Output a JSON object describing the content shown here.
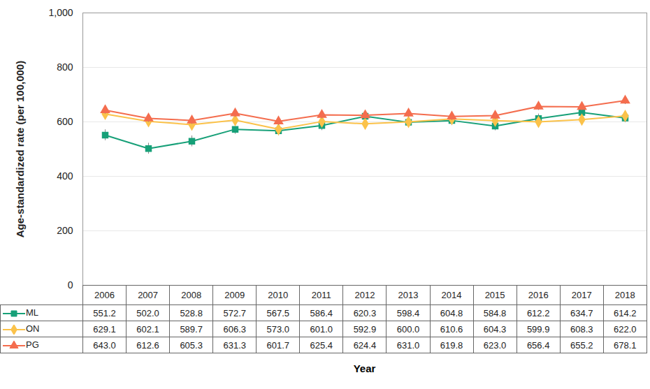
{
  "chart_data": {
    "type": "line",
    "x_label": "Year",
    "y_label": "Age-standardized rate (per 100,000)",
    "categories": [
      "2006",
      "2007",
      "2008",
      "2009",
      "2010",
      "2011",
      "2012",
      "2013",
      "2014",
      "2015",
      "2016",
      "2017",
      "2018"
    ],
    "series": [
      {
        "name": "ML",
        "color": "#17a078",
        "marker": "square",
        "values": [
          551.2,
          502.0,
          528.8,
          572.7,
          567.5,
          586.4,
          620.3,
          598.4,
          604.8,
          584.8,
          612.2,
          634.7,
          614.2
        ],
        "value_labels": [
          "551.2",
          "502.0",
          "528.8",
          "572.7",
          "567.5",
          "586.4",
          "620.3",
          "598.4",
          "604.8",
          "584.8",
          "612.2",
          "634.7",
          "614.2"
        ],
        "errors": [
          20,
          20,
          20,
          18,
          18,
          18,
          18,
          18,
          18,
          17,
          17,
          17,
          17
        ]
      },
      {
        "name": "ON",
        "color": "#fbc24a",
        "marker": "diamond",
        "values": [
          629.1,
          602.1,
          589.7,
          606.3,
          573.0,
          601.0,
          592.9,
          600.0,
          610.6,
          604.3,
          599.9,
          608.3,
          622.0
        ],
        "value_labels": [
          "629.1",
          "602.1",
          "589.7",
          "606.3",
          "573.0",
          "601.0",
          "592.9",
          "600.0",
          "610.6",
          "604.3",
          "599.9",
          "608.3",
          "622.0"
        ],
        "errors": [
          5,
          5,
          5,
          5,
          5,
          5,
          5,
          5,
          5,
          5,
          5,
          5,
          5
        ]
      },
      {
        "name": "PG",
        "color": "#f46d4e",
        "marker": "triangle",
        "values": [
          643.0,
          612.6,
          605.3,
          631.3,
          601.7,
          625.4,
          624.4,
          631.0,
          619.8,
          623.0,
          656.4,
          655.2,
          678.1
        ],
        "value_labels": [
          "643.0",
          "612.6",
          "605.3",
          "631.3",
          "601.7",
          "625.4",
          "624.4",
          "631.0",
          "619.8",
          "623.0",
          "656.4",
          "655.2",
          "678.1"
        ],
        "errors": [
          14,
          14,
          14,
          14,
          14,
          14,
          14,
          14,
          14,
          14,
          14,
          14,
          14
        ]
      }
    ],
    "ylim": [
      0,
      1000
    ],
    "yticks": [
      0,
      200,
      400,
      600,
      800,
      {
        "value": 1000,
        "label": "1,000"
      }
    ],
    "grid": true
  }
}
